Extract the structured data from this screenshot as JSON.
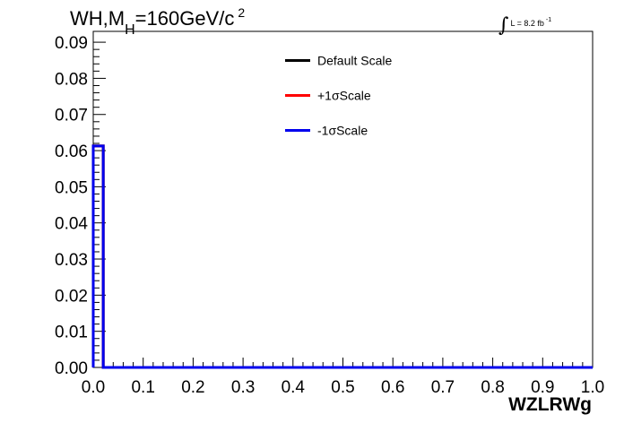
{
  "title": {
    "main": "WH,M",
    "sub": "H",
    "rest": "=160GeV/c",
    "sup": "2"
  },
  "luminosity": {
    "integral_symbol": "∫",
    "text": "L = 8.2 fb",
    "sup": "-1"
  },
  "colors": {
    "default": "#000000",
    "plus": "#ff0000",
    "minus": "#0000ee"
  },
  "chart_data": {
    "type": "line",
    "xlabel": "WZLRWg",
    "ylabel": "",
    "xlim": [
      0.0,
      1.0
    ],
    "ylim": [
      0.0,
      0.093
    ],
    "x_ticks": [
      "0.0",
      "0.1",
      "0.2",
      "0.3",
      "0.4",
      "0.5",
      "0.6",
      "0.7",
      "0.8",
      "0.9",
      "1.0"
    ],
    "y_ticks": [
      "0.00",
      "0.01",
      "0.02",
      "0.03",
      "0.04",
      "0.05",
      "0.06",
      "0.07",
      "0.08",
      "0.09"
    ],
    "legend": {
      "placement": "top-center"
    },
    "grid": false,
    "bins": {
      "x_edges": [
        0.0,
        0.02,
        1.0
      ]
    },
    "series": [
      {
        "name": "Default Scale",
        "color": "#000000",
        "values": [
          0.0613,
          0.0
        ]
      },
      {
        "name": "+1σScale",
        "color": "#ff0000",
        "values": [
          0.0613,
          0.0
        ]
      },
      {
        "name": "-1σScale",
        "color": "#0000ee",
        "values": [
          0.0613,
          0.0
        ]
      }
    ]
  }
}
